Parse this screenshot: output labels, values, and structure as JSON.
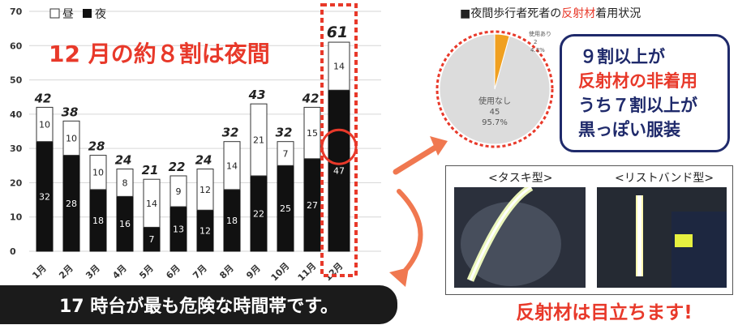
{
  "chart_data": {
    "type": "bar",
    "stacked": true,
    "categories": [
      "1月",
      "2月",
      "3月",
      "4月",
      "5月",
      "6月",
      "7月",
      "8月",
      "9月",
      "10月",
      "11月",
      "12月"
    ],
    "series": [
      {
        "name": "夜",
        "values": [
          32,
          28,
          18,
          16,
          7,
          13,
          12,
          18,
          22,
          25,
          27,
          47
        ]
      },
      {
        "name": "昼",
        "values": [
          10,
          10,
          10,
          8,
          14,
          9,
          12,
          14,
          21,
          7,
          15,
          14
        ]
      }
    ],
    "totals": [
      42,
      38,
      28,
      24,
      21,
      22,
      24,
      32,
      43,
      32,
      42,
      61
    ],
    "ylim": [
      0,
      70
    ],
    "yticks": [
      0,
      10,
      20,
      30,
      40,
      50,
      60,
      70
    ],
    "legend": {
      "day": "昼",
      "night": "夜",
      "position": "top-left"
    },
    "annotation": "12 月の約８割は夜間",
    "grid": true,
    "highlight_category": "12月"
  },
  "pie_chart": {
    "type": "pie",
    "slices": [
      {
        "label": "使用なし",
        "count": "45",
        "percent": "95.7%",
        "value": 95.7
      },
      {
        "label": "使用あり",
        "count": "2",
        "percent": "4.3%",
        "value": 4.3
      }
    ]
  },
  "right_panel": {
    "title_prefix": "■夜間歩行者死者の",
    "title_highlight": "反射材",
    "title_suffix": "着用状況",
    "summary_line1": "９割以上が",
    "summary_line2": "反射材の非着用",
    "summary_line3": "うち７割以上が",
    "summary_line4": "黒っぽい服装"
  },
  "photos": {
    "left_label": "<タスキ型>",
    "right_label": "<リストバンド型>"
  },
  "bottom": {
    "banner": "17 時台が最も危険な時間帯です。",
    "reflector_text": "反射材は目立ちます!"
  },
  "colors": {
    "night": "#111111",
    "day": "#ffffff",
    "accent_red": "#e8392a",
    "navy": "#1f2a6b",
    "pie_grey": "#dcdcdc",
    "pie_orange": "#f0a020"
  }
}
